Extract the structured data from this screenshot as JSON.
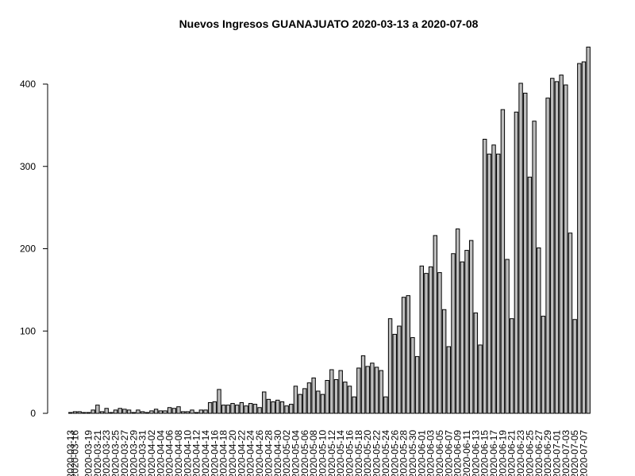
{
  "chart_data": {
    "type": "bar",
    "title": "Nuevos Ingresos GUANAJUATO 2020-03-13 a 2020-07-08",
    "xlabel": "",
    "ylabel": "",
    "ylim": [
      0,
      445
    ],
    "yticks": [
      0,
      100,
      200,
      300,
      400
    ],
    "grid": false,
    "x_tick_labels": [
      "2020-03-13",
      "2020-03-16",
      "2020-03-19",
      "2020-03-21",
      "2020-03-23",
      "2020-03-25",
      "2020-03-27",
      "2020-03-29",
      "2020-03-31",
      "2020-04-02",
      "2020-04-04",
      "2020-04-06",
      "2020-04-08",
      "2020-04-10",
      "2020-04-12",
      "2020-04-14",
      "2020-04-16",
      "2020-04-18",
      "2020-04-20",
      "2020-04-22",
      "2020-04-24",
      "2020-04-26",
      "2020-04-28",
      "2020-04-30",
      "2020-05-02",
      "2020-05-04",
      "2020-05-06",
      "2020-05-08",
      "2020-05-10",
      "2020-05-12",
      "2020-05-14",
      "2020-05-16",
      "2020-05-18",
      "2020-05-20",
      "2020-05-22",
      "2020-05-24",
      "2020-05-26",
      "2020-05-28",
      "2020-05-30",
      "2020-06-01",
      "2020-06-03",
      "2020-06-05",
      "2020-06-07",
      "2020-06-09",
      "2020-06-11",
      "2020-06-13",
      "2020-06-15",
      "2020-06-17",
      "2020-06-19",
      "2020-06-21",
      "2020-06-23",
      "2020-06-25",
      "2020-06-27",
      "2020-06-29",
      "2020-07-01",
      "2020-07-03",
      "2020-07-05",
      "2020-07-07"
    ],
    "categories": [
      "2020-03-13",
      "2020-03-16",
      "2020-03-17",
      "2020-03-18",
      "2020-03-19",
      "2020-03-20",
      "2020-03-21",
      "2020-03-22",
      "2020-03-23",
      "2020-03-24",
      "2020-03-25",
      "2020-03-26",
      "2020-03-27",
      "2020-03-28",
      "2020-03-29",
      "2020-03-30",
      "2020-03-31",
      "2020-04-01",
      "2020-04-02",
      "2020-04-03",
      "2020-04-04",
      "2020-04-05",
      "2020-04-06",
      "2020-04-07",
      "2020-04-08",
      "2020-04-09",
      "2020-04-10",
      "2020-04-11",
      "2020-04-12",
      "2020-04-13",
      "2020-04-14",
      "2020-04-15",
      "2020-04-16",
      "2020-04-17",
      "2020-04-18",
      "2020-04-19",
      "2020-04-20",
      "2020-04-21",
      "2020-04-22",
      "2020-04-23",
      "2020-04-24",
      "2020-04-25",
      "2020-04-26",
      "2020-04-27",
      "2020-04-28",
      "2020-04-29",
      "2020-04-30",
      "2020-05-01",
      "2020-05-02",
      "2020-05-03",
      "2020-05-04",
      "2020-05-05",
      "2020-05-06",
      "2020-05-07",
      "2020-05-08",
      "2020-05-09",
      "2020-05-10",
      "2020-05-11",
      "2020-05-12",
      "2020-05-13",
      "2020-05-14",
      "2020-05-15",
      "2020-05-16",
      "2020-05-17",
      "2020-05-18",
      "2020-05-19",
      "2020-05-20",
      "2020-05-21",
      "2020-05-22",
      "2020-05-23",
      "2020-05-24",
      "2020-05-25",
      "2020-05-26",
      "2020-05-27",
      "2020-05-28",
      "2020-05-29",
      "2020-05-30",
      "2020-05-31",
      "2020-06-01",
      "2020-06-02",
      "2020-06-03",
      "2020-06-04",
      "2020-06-05",
      "2020-06-06",
      "2020-06-07",
      "2020-06-08",
      "2020-06-09",
      "2020-06-10",
      "2020-06-11",
      "2020-06-12",
      "2020-06-13",
      "2020-06-14",
      "2020-06-15",
      "2020-06-16",
      "2020-06-17",
      "2020-06-18",
      "2020-06-19",
      "2020-06-20",
      "2020-06-21",
      "2020-06-22",
      "2020-06-23",
      "2020-06-24",
      "2020-06-25",
      "2020-06-26",
      "2020-06-27",
      "2020-06-28",
      "2020-06-29",
      "2020-06-30",
      "2020-07-01",
      "2020-07-02",
      "2020-07-03",
      "2020-07-04",
      "2020-07-05",
      "2020-07-06",
      "2020-07-07",
      "2020-07-08"
    ],
    "values": [
      1,
      2,
      2,
      1,
      1,
      4,
      10,
      2,
      6,
      1,
      4,
      6,
      5,
      4,
      1,
      4,
      2,
      1,
      3,
      5,
      3,
      3,
      7,
      6,
      8,
      2,
      2,
      4,
      1,
      4,
      4,
      13,
      14,
      29,
      10,
      10,
      12,
      10,
      13,
      9,
      12,
      11,
      7,
      26,
      17,
      14,
      16,
      14,
      9,
      11,
      33,
      23,
      30,
      37,
      43,
      27,
      23,
      40,
      53,
      41,
      52,
      38,
      33,
      20,
      55,
      70,
      57,
      61,
      56,
      52,
      20,
      115,
      96,
      106,
      141,
      143,
      92,
      69,
      179,
      170,
      178,
      216,
      171,
      126,
      81,
      194,
      224,
      184,
      198,
      210,
      122,
      83,
      333,
      315,
      326,
      315,
      369,
      187,
      115,
      366,
      401,
      389,
      287,
      355,
      201,
      118,
      383,
      407,
      403,
      411,
      399,
      219,
      114,
      425,
      427,
      445
    ],
    "bar_fill": "#bebebe",
    "bar_stroke": "#000000"
  }
}
